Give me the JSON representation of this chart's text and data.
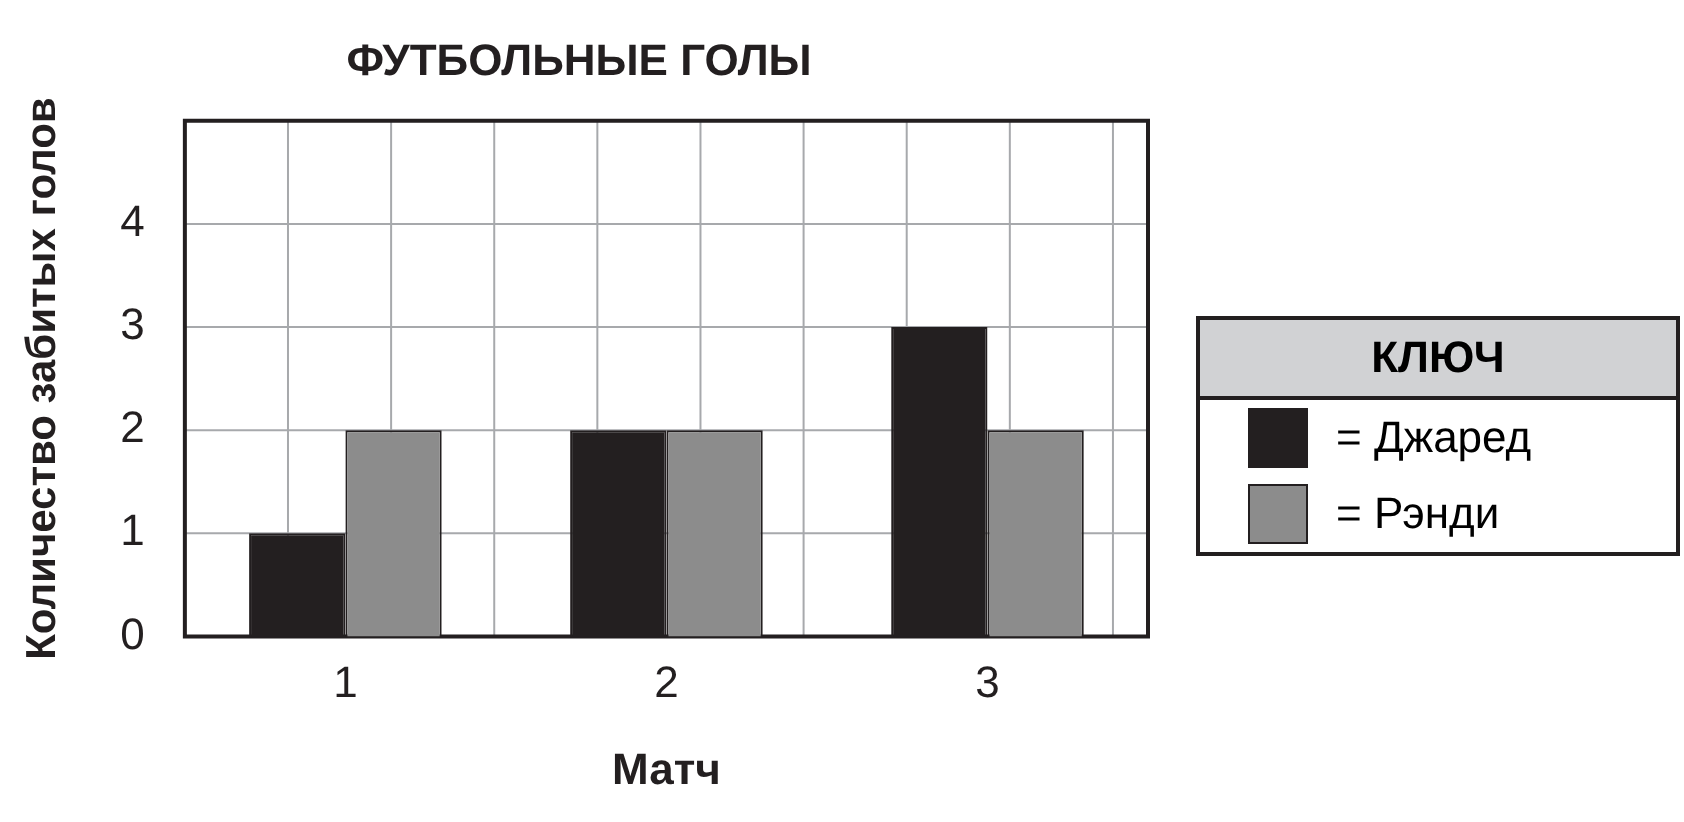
{
  "chart_data": {
    "type": "bar",
    "title": "ФУТБОЛЬНЫЕ ГОЛЫ",
    "xlabel": "Матч",
    "ylabel": "Количество забитых голов",
    "legend_title": "КЛЮЧ",
    "categories": [
      "1",
      "2",
      "3"
    ],
    "series": [
      {
        "name": "= Джаред",
        "color": "#231f20",
        "values": [
          1,
          2,
          3
        ]
      },
      {
        "name": "= Рэнди",
        "color": "#8c8c8c",
        "values": [
          2,
          2,
          2
        ]
      }
    ],
    "ylim": [
      0,
      5
    ],
    "yticks": [
      0,
      1,
      2,
      3,
      4
    ],
    "grid": true,
    "legend": "right"
  }
}
